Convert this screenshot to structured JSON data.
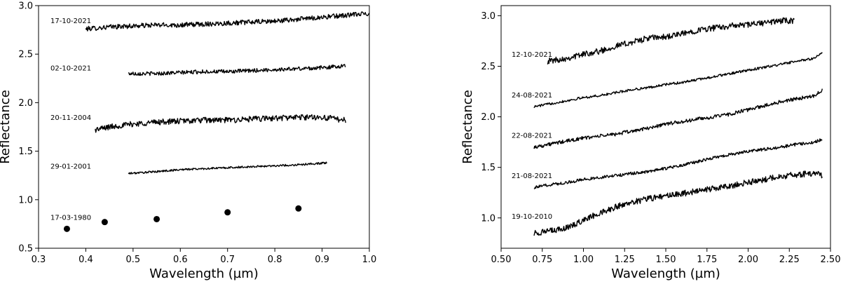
{
  "chart_data": [
    {
      "type": "line",
      "title": "",
      "xlabel": "Wavelength (µm)",
      "ylabel": "Reflectance",
      "xlim": [
        0.3,
        1.0
      ],
      "ylim": [
        0.5,
        3.0
      ],
      "xticks": [
        "0.3",
        "0.4",
        "0.5",
        "0.6",
        "0.7",
        "0.8",
        "0.9",
        "1.0"
      ],
      "yticks": [
        "0.5",
        "1.0",
        "1.5",
        "2.0",
        "2.5",
        "3.0"
      ],
      "color": "#000000",
      "series": [
        {
          "name": "17-10-2021",
          "kind": "line",
          "x": [
            0.4,
            0.45,
            0.5,
            0.55,
            0.6,
            0.65,
            0.7,
            0.75,
            0.8,
            0.85,
            0.9,
            0.95,
            1.0
          ],
          "y": [
            2.76,
            2.78,
            2.79,
            2.8,
            2.8,
            2.81,
            2.82,
            2.83,
            2.84,
            2.86,
            2.88,
            2.9,
            2.92
          ],
          "noise": 0.025
        },
        {
          "name": "02-10-2021",
          "kind": "line",
          "x": [
            0.49,
            0.55,
            0.6,
            0.65,
            0.7,
            0.75,
            0.8,
            0.85,
            0.9,
            0.95
          ],
          "y": [
            2.3,
            2.3,
            2.31,
            2.32,
            2.32,
            2.33,
            2.34,
            2.35,
            2.36,
            2.38
          ],
          "noise": 0.02
        },
        {
          "name": "20-11-2004",
          "kind": "line",
          "x": [
            0.42,
            0.45,
            0.5,
            0.55,
            0.6,
            0.65,
            0.7,
            0.75,
            0.8,
            0.85,
            0.9,
            0.95
          ],
          "y": [
            1.72,
            1.75,
            1.78,
            1.8,
            1.81,
            1.82,
            1.82,
            1.83,
            1.84,
            1.85,
            1.85,
            1.82
          ],
          "noise": 0.03
        },
        {
          "name": "29-01-2001",
          "kind": "line",
          "x": [
            0.49,
            0.55,
            0.6,
            0.65,
            0.7,
            0.75,
            0.8,
            0.85,
            0.91
          ],
          "y": [
            1.27,
            1.29,
            1.31,
            1.32,
            1.33,
            1.34,
            1.35,
            1.36,
            1.38
          ],
          "noise": 0.01
        },
        {
          "name": "17-03-1980",
          "kind": "scatter",
          "x": [
            0.36,
            0.44,
            0.55,
            0.7,
            0.85
          ],
          "y": [
            0.7,
            0.77,
            0.8,
            0.87,
            0.91
          ]
        }
      ]
    },
    {
      "type": "line",
      "title": "",
      "xlabel": "Wavelength (µm)",
      "ylabel": "Reflectance",
      "xlim": [
        0.5,
        2.5
      ],
      "ylim": [
        0.7,
        3.1
      ],
      "xticks": [
        "0.50",
        "0.75",
        "1.00",
        "1.25",
        "1.50",
        "1.75",
        "2.00",
        "2.25",
        "2.50"
      ],
      "yticks": [
        "1.0",
        "1.5",
        "2.0",
        "2.5",
        "3.0"
      ],
      "color": "#000000",
      "series": [
        {
          "name": "12-10-2021",
          "kind": "line",
          "x": [
            0.78,
            0.9,
            1.0,
            1.1,
            1.2,
            1.3,
            1.4,
            1.5,
            1.6,
            1.7,
            1.8,
            1.9,
            2.0,
            2.1,
            2.2,
            2.28
          ],
          "y": [
            2.55,
            2.58,
            2.62,
            2.65,
            2.7,
            2.74,
            2.78,
            2.79,
            2.82,
            2.86,
            2.88,
            2.9,
            2.91,
            2.93,
            2.95,
            2.95
          ],
          "noise": 0.03
        },
        {
          "name": "24-08-2021",
          "kind": "line",
          "x": [
            0.7,
            0.8,
            0.9,
            1.0,
            1.1,
            1.2,
            1.3,
            1.4,
            1.5,
            1.6,
            1.7,
            1.8,
            1.9,
            2.0,
            2.1,
            2.2,
            2.3,
            2.4,
            2.45
          ],
          "y": [
            2.1,
            2.13,
            2.16,
            2.19,
            2.21,
            2.24,
            2.27,
            2.29,
            2.32,
            2.34,
            2.37,
            2.4,
            2.43,
            2.46,
            2.49,
            2.52,
            2.55,
            2.58,
            2.63
          ],
          "noise": 0.012
        },
        {
          "name": "22-08-2021",
          "kind": "line",
          "x": [
            0.7,
            0.8,
            0.9,
            1.0,
            1.1,
            1.2,
            1.3,
            1.4,
            1.5,
            1.6,
            1.7,
            1.8,
            1.9,
            2.0,
            2.1,
            2.2,
            2.3,
            2.4,
            2.45
          ],
          "y": [
            1.7,
            1.73,
            1.76,
            1.79,
            1.81,
            1.83,
            1.86,
            1.89,
            1.93,
            1.95,
            1.98,
            2.0,
            2.03,
            2.07,
            2.11,
            2.15,
            2.18,
            2.21,
            2.26
          ],
          "noise": 0.018
        },
        {
          "name": "21-08-2021",
          "kind": "line",
          "x": [
            0.7,
            0.8,
            0.9,
            1.0,
            1.1,
            1.2,
            1.3,
            1.4,
            1.5,
            1.6,
            1.7,
            1.8,
            1.9,
            2.0,
            2.1,
            2.2,
            2.3,
            2.4,
            2.45
          ],
          "y": [
            1.3,
            1.33,
            1.35,
            1.38,
            1.4,
            1.42,
            1.44,
            1.46,
            1.49,
            1.52,
            1.56,
            1.6,
            1.63,
            1.66,
            1.68,
            1.7,
            1.73,
            1.75,
            1.78
          ],
          "noise": 0.015
        },
        {
          "name": "19-10-2010",
          "kind": "line",
          "x": [
            0.7,
            0.8,
            0.9,
            1.0,
            1.1,
            1.2,
            1.3,
            1.4,
            1.5,
            1.6,
            1.7,
            1.8,
            1.9,
            2.0,
            2.1,
            2.2,
            2.3,
            2.4,
            2.45
          ],
          "y": [
            0.85,
            0.87,
            0.9,
            0.98,
            1.05,
            1.11,
            1.16,
            1.19,
            1.22,
            1.24,
            1.27,
            1.29,
            1.32,
            1.35,
            1.38,
            1.41,
            1.43,
            1.44,
            1.42
          ],
          "noise": 0.03
        }
      ]
    }
  ]
}
